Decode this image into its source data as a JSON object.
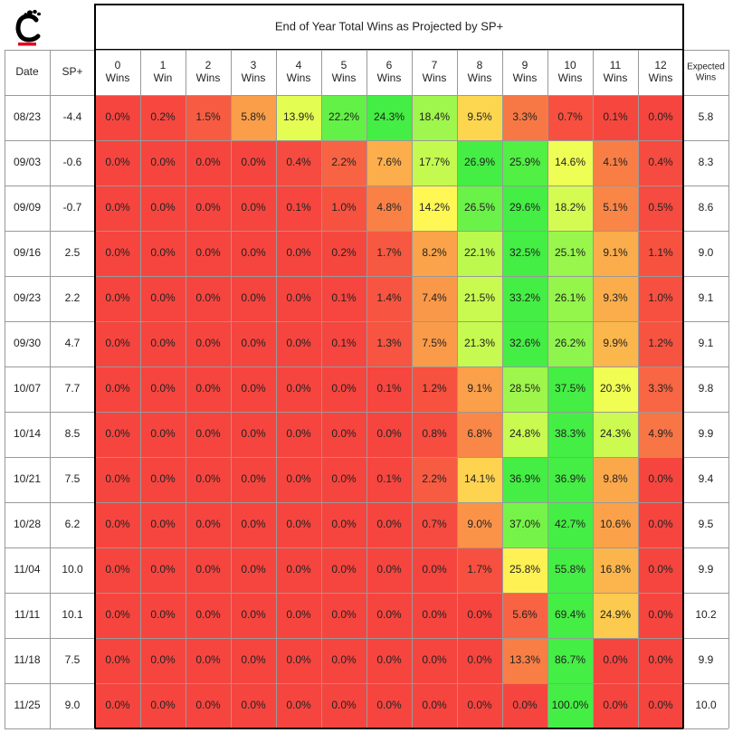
{
  "chart_data": {
    "type": "heatmap",
    "title": "End of Year Total Wins as Projected by SP+",
    "header": {
      "date_label": "Date",
      "sp_label": "SP+",
      "expected_label": [
        "Expected",
        "Wins"
      ]
    },
    "columns": [
      [
        "0",
        "Wins"
      ],
      [
        "1",
        "Win"
      ],
      [
        "2",
        "Wins"
      ],
      [
        "3",
        "Wins"
      ],
      [
        "4",
        "Wins"
      ],
      [
        "5",
        "Wins"
      ],
      [
        "6",
        "Wins"
      ],
      [
        "7",
        "Wins"
      ],
      [
        "8",
        "Wins"
      ],
      [
        "9",
        "Wins"
      ],
      [
        "10",
        "Wins"
      ],
      [
        "11",
        "Wins"
      ],
      [
        "12",
        "Wins"
      ]
    ],
    "rows": [
      {
        "date": "08/23",
        "sp": "-4.4",
        "values": [
          0.0,
          0.2,
          1.5,
          5.8,
          13.9,
          22.2,
          24.3,
          18.4,
          9.5,
          3.3,
          0.7,
          0.1,
          0.0
        ],
        "expected": "5.8"
      },
      {
        "date": "09/03",
        "sp": "-0.6",
        "values": [
          0.0,
          0.0,
          0.0,
          0.0,
          0.4,
          2.2,
          7.6,
          17.7,
          26.9,
          25.9,
          14.6,
          4.1,
          0.4
        ],
        "expected": "8.3"
      },
      {
        "date": "09/09",
        "sp": "-0.7",
        "values": [
          0.0,
          0.0,
          0.0,
          0.0,
          0.1,
          1.0,
          4.8,
          14.2,
          26.5,
          29.6,
          18.2,
          5.1,
          0.5
        ],
        "expected": "8.6"
      },
      {
        "date": "09/16",
        "sp": "2.5",
        "values": [
          0.0,
          0.0,
          0.0,
          0.0,
          0.0,
          0.2,
          1.7,
          8.2,
          22.1,
          32.5,
          25.1,
          9.1,
          1.1
        ],
        "expected": "9.0"
      },
      {
        "date": "09/23",
        "sp": "2.2",
        "values": [
          0.0,
          0.0,
          0.0,
          0.0,
          0.0,
          0.1,
          1.4,
          7.4,
          21.5,
          33.2,
          26.1,
          9.3,
          1.0
        ],
        "expected": "9.1"
      },
      {
        "date": "09/30",
        "sp": "4.7",
        "values": [
          0.0,
          0.0,
          0.0,
          0.0,
          0.0,
          0.1,
          1.3,
          7.5,
          21.3,
          32.6,
          26.2,
          9.9,
          1.2
        ],
        "expected": "9.1"
      },
      {
        "date": "10/07",
        "sp": "7.7",
        "values": [
          0.0,
          0.0,
          0.0,
          0.0,
          0.0,
          0.0,
          0.1,
          1.2,
          9.1,
          28.5,
          37.5,
          20.3,
          3.3
        ],
        "expected": "9.8"
      },
      {
        "date": "10/14",
        "sp": "8.5",
        "values": [
          0.0,
          0.0,
          0.0,
          0.0,
          0.0,
          0.0,
          0.0,
          0.8,
          6.8,
          24.8,
          38.3,
          24.3,
          4.9
        ],
        "expected": "9.9"
      },
      {
        "date": "10/21",
        "sp": "7.5",
        "values": [
          0.0,
          0.0,
          0.0,
          0.0,
          0.0,
          0.0,
          0.1,
          2.2,
          14.1,
          36.9,
          36.9,
          9.8,
          0.0
        ],
        "expected": "9.4"
      },
      {
        "date": "10/28",
        "sp": "6.2",
        "values": [
          0.0,
          0.0,
          0.0,
          0.0,
          0.0,
          0.0,
          0.0,
          0.7,
          9.0,
          37.0,
          42.7,
          10.6,
          0.0
        ],
        "expected": "9.5"
      },
      {
        "date": "11/04",
        "sp": "10.0",
        "values": [
          0.0,
          0.0,
          0.0,
          0.0,
          0.0,
          0.0,
          0.0,
          0.0,
          1.7,
          25.8,
          55.8,
          16.8,
          0.0
        ],
        "expected": "9.9"
      },
      {
        "date": "11/11",
        "sp": "10.1",
        "values": [
          0.0,
          0.0,
          0.0,
          0.0,
          0.0,
          0.0,
          0.0,
          0.0,
          0.0,
          5.6,
          69.4,
          24.9,
          0.0
        ],
        "expected": "10.2"
      },
      {
        "date": "11/18",
        "sp": "7.5",
        "values": [
          0.0,
          0.0,
          0.0,
          0.0,
          0.0,
          0.0,
          0.0,
          0.0,
          0.0,
          13.3,
          86.7,
          0.0,
          0.0
        ],
        "expected": "9.9"
      },
      {
        "date": "11/25",
        "sp": "9.0",
        "values": [
          0.0,
          0.0,
          0.0,
          0.0,
          0.0,
          0.0,
          0.0,
          0.0,
          0.0,
          0.0,
          100.0,
          0.0,
          0.0
        ],
        "expected": "10.0"
      }
    ],
    "color_scale": {
      "low": "#f6453f",
      "mid": "#ffff55",
      "high": "#44ee44",
      "scale": "per-row"
    },
    "grid": true,
    "logo": {
      "name": "cincinnati-c-logo",
      "color_main": "#000000",
      "color_accent": "#e00122"
    }
  }
}
